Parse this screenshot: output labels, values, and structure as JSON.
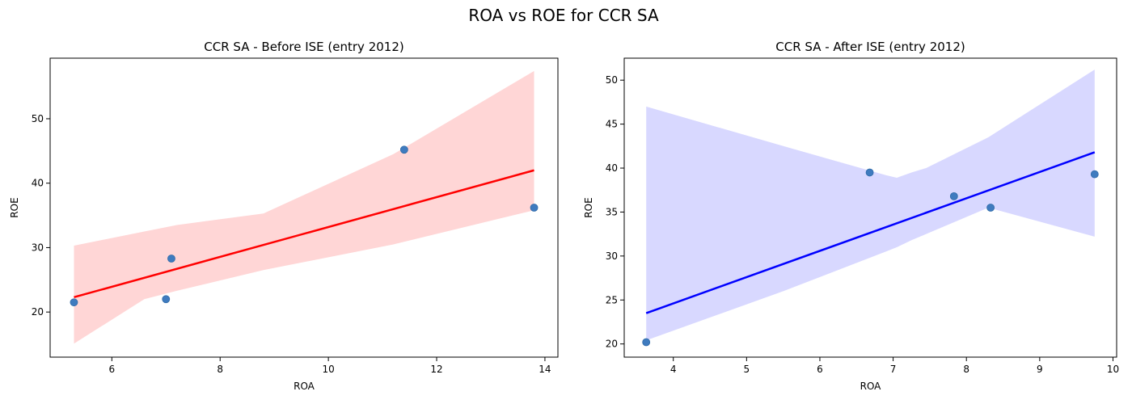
{
  "suptitle": "ROA vs ROE for CCR SA",
  "chart_data": [
    {
      "type": "scatter",
      "title": "CCR SA  - Before ISE (entry 2012)",
      "xlabel": "ROA",
      "ylabel": "ROE",
      "xlim": [
        4.86,
        14.24
      ],
      "ylim": [
        13.0,
        59.4
      ],
      "xticks": [
        6,
        8,
        10,
        12,
        14
      ],
      "yticks": [
        20,
        30,
        40,
        50
      ],
      "points": {
        "x": [
          5.3,
          7.0,
          7.1,
          11.4,
          13.8
        ],
        "y": [
          21.5,
          22.0,
          28.3,
          45.2,
          36.2
        ]
      },
      "regression": {
        "x": [
          5.3,
          13.8
        ],
        "y": [
          22.3,
          42.0
        ]
      },
      "ci_band": {
        "x": [
          5.3,
          6.6,
          7.2,
          8.8,
          11.2,
          13.8
        ],
        "upper": [
          30.3,
          32.5,
          33.5,
          35.3,
          44.5,
          57.4
        ],
        "lower": [
          15.1,
          22.0,
          23.3,
          26.5,
          30.5,
          35.8
        ]
      },
      "colors": {
        "point": "#3f7bbf",
        "line": "#ff0000",
        "band": "#ffd6d6"
      },
      "grid": false
    },
    {
      "type": "scatter",
      "title": "CCR SA  - After ISE (entry 2012)",
      "xlabel": "ROA",
      "ylabel": "ROE",
      "xlim": [
        3.33,
        10.05
      ],
      "ylim": [
        18.5,
        52.5
      ],
      "xticks": [
        4,
        5,
        6,
        7,
        8,
        9,
        10
      ],
      "yticks": [
        20,
        25,
        30,
        35,
        40,
        45,
        50
      ],
      "points": {
        "x": [
          3.63,
          6.68,
          7.83,
          8.33,
          9.75
        ],
        "y": [
          20.2,
          39.5,
          36.8,
          35.5,
          39.3
        ]
      },
      "regression": {
        "x": [
          3.63,
          9.75
        ],
        "y": [
          23.5,
          41.8
        ]
      },
      "ci_band": {
        "x": [
          3.63,
          5.5,
          6.9,
          7.05,
          7.25,
          7.45,
          8.3,
          9.75
        ],
        "upper": [
          47.0,
          42.5,
          39.2,
          38.9,
          39.5,
          40.0,
          43.5,
          51.2
        ],
        "lower": [
          20.4,
          26.0,
          30.5,
          31.0,
          31.8,
          32.5,
          35.5,
          32.2
        ]
      },
      "colors": {
        "point": "#3f7bbf",
        "line": "#0000ff",
        "band": "#d8d8ff"
      },
      "grid": false
    }
  ]
}
